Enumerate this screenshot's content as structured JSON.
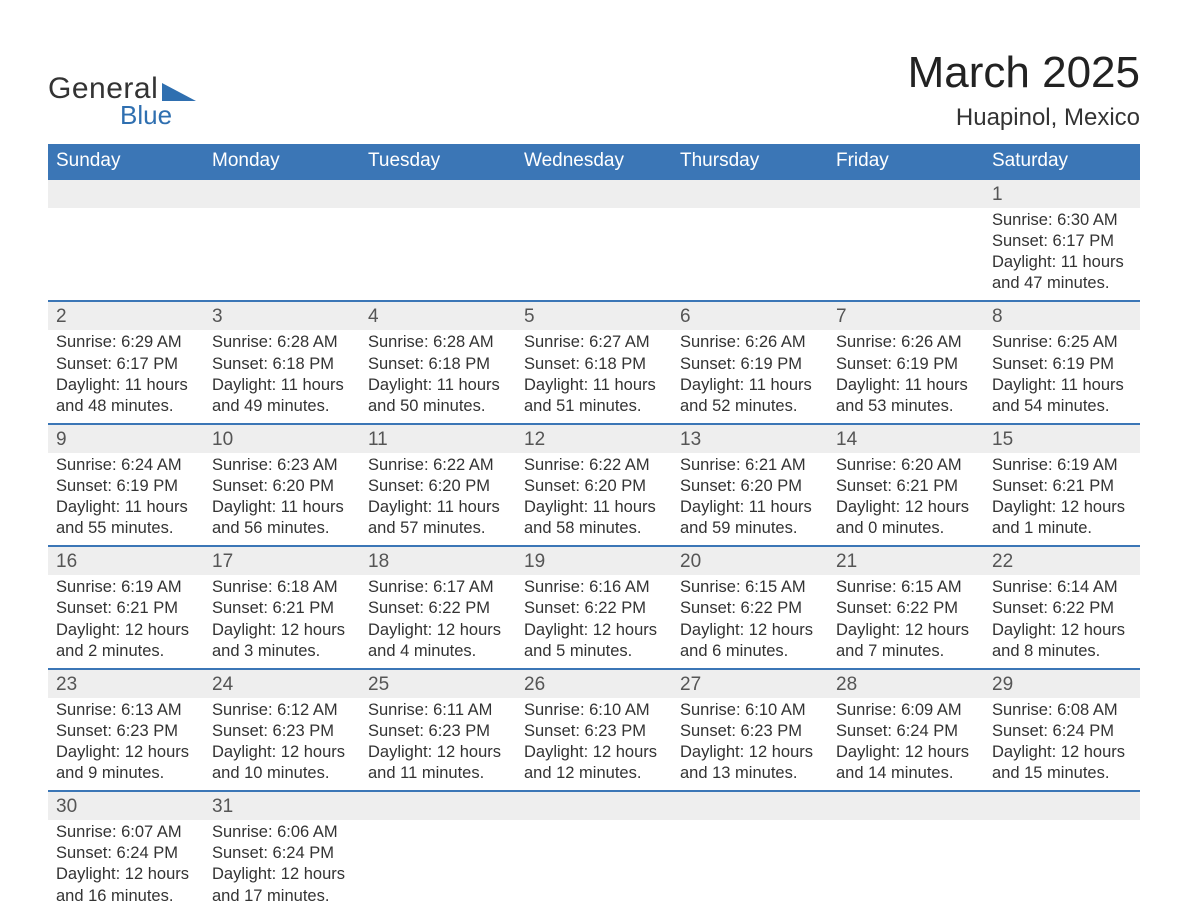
{
  "brand": {
    "word1": "General",
    "word2": "Blue",
    "triangle_color": "#2f6fb0",
    "text_color": "#333333",
    "blue_text_color": "#2f6fb0"
  },
  "title": {
    "month_year": "March 2025",
    "location": "Huapinol, Mexico",
    "month_fontsize": 44,
    "location_fontsize": 24
  },
  "colors": {
    "header_bg": "#3b76b6",
    "header_text": "#ffffff",
    "row_divider": "#3b76b6",
    "daynum_bg": "#eeeeee",
    "body_text": "#333333",
    "page_bg": "#ffffff"
  },
  "calendar": {
    "type": "table",
    "columns": [
      "Sunday",
      "Monday",
      "Tuesday",
      "Wednesday",
      "Thursday",
      "Friday",
      "Saturday"
    ],
    "weeks": [
      [
        null,
        null,
        null,
        null,
        null,
        null,
        {
          "n": "1",
          "sr": "Sunrise: 6:30 AM",
          "ss": "Sunset: 6:17 PM",
          "d1": "Daylight: 11 hours",
          "d2": "and 47 minutes."
        }
      ],
      [
        {
          "n": "2",
          "sr": "Sunrise: 6:29 AM",
          "ss": "Sunset: 6:17 PM",
          "d1": "Daylight: 11 hours",
          "d2": "and 48 minutes."
        },
        {
          "n": "3",
          "sr": "Sunrise: 6:28 AM",
          "ss": "Sunset: 6:18 PM",
          "d1": "Daylight: 11 hours",
          "d2": "and 49 minutes."
        },
        {
          "n": "4",
          "sr": "Sunrise: 6:28 AM",
          "ss": "Sunset: 6:18 PM",
          "d1": "Daylight: 11 hours",
          "d2": "and 50 minutes."
        },
        {
          "n": "5",
          "sr": "Sunrise: 6:27 AM",
          "ss": "Sunset: 6:18 PM",
          "d1": "Daylight: 11 hours",
          "d2": "and 51 minutes."
        },
        {
          "n": "6",
          "sr": "Sunrise: 6:26 AM",
          "ss": "Sunset: 6:19 PM",
          "d1": "Daylight: 11 hours",
          "d2": "and 52 minutes."
        },
        {
          "n": "7",
          "sr": "Sunrise: 6:26 AM",
          "ss": "Sunset: 6:19 PM",
          "d1": "Daylight: 11 hours",
          "d2": "and 53 minutes."
        },
        {
          "n": "8",
          "sr": "Sunrise: 6:25 AM",
          "ss": "Sunset: 6:19 PM",
          "d1": "Daylight: 11 hours",
          "d2": "and 54 minutes."
        }
      ],
      [
        {
          "n": "9",
          "sr": "Sunrise: 6:24 AM",
          "ss": "Sunset: 6:19 PM",
          "d1": "Daylight: 11 hours",
          "d2": "and 55 minutes."
        },
        {
          "n": "10",
          "sr": "Sunrise: 6:23 AM",
          "ss": "Sunset: 6:20 PM",
          "d1": "Daylight: 11 hours",
          "d2": "and 56 minutes."
        },
        {
          "n": "11",
          "sr": "Sunrise: 6:22 AM",
          "ss": "Sunset: 6:20 PM",
          "d1": "Daylight: 11 hours",
          "d2": "and 57 minutes."
        },
        {
          "n": "12",
          "sr": "Sunrise: 6:22 AM",
          "ss": "Sunset: 6:20 PM",
          "d1": "Daylight: 11 hours",
          "d2": "and 58 minutes."
        },
        {
          "n": "13",
          "sr": "Sunrise: 6:21 AM",
          "ss": "Sunset: 6:20 PM",
          "d1": "Daylight: 11 hours",
          "d2": "and 59 minutes."
        },
        {
          "n": "14",
          "sr": "Sunrise: 6:20 AM",
          "ss": "Sunset: 6:21 PM",
          "d1": "Daylight: 12 hours",
          "d2": "and 0 minutes."
        },
        {
          "n": "15",
          "sr": "Sunrise: 6:19 AM",
          "ss": "Sunset: 6:21 PM",
          "d1": "Daylight: 12 hours",
          "d2": "and 1 minute."
        }
      ],
      [
        {
          "n": "16",
          "sr": "Sunrise: 6:19 AM",
          "ss": "Sunset: 6:21 PM",
          "d1": "Daylight: 12 hours",
          "d2": "and 2 minutes."
        },
        {
          "n": "17",
          "sr": "Sunrise: 6:18 AM",
          "ss": "Sunset: 6:21 PM",
          "d1": "Daylight: 12 hours",
          "d2": "and 3 minutes."
        },
        {
          "n": "18",
          "sr": "Sunrise: 6:17 AM",
          "ss": "Sunset: 6:22 PM",
          "d1": "Daylight: 12 hours",
          "d2": "and 4 minutes."
        },
        {
          "n": "19",
          "sr": "Sunrise: 6:16 AM",
          "ss": "Sunset: 6:22 PM",
          "d1": "Daylight: 12 hours",
          "d2": "and 5 minutes."
        },
        {
          "n": "20",
          "sr": "Sunrise: 6:15 AM",
          "ss": "Sunset: 6:22 PM",
          "d1": "Daylight: 12 hours",
          "d2": "and 6 minutes."
        },
        {
          "n": "21",
          "sr": "Sunrise: 6:15 AM",
          "ss": "Sunset: 6:22 PM",
          "d1": "Daylight: 12 hours",
          "d2": "and 7 minutes."
        },
        {
          "n": "22",
          "sr": "Sunrise: 6:14 AM",
          "ss": "Sunset: 6:22 PM",
          "d1": "Daylight: 12 hours",
          "d2": "and 8 minutes."
        }
      ],
      [
        {
          "n": "23",
          "sr": "Sunrise: 6:13 AM",
          "ss": "Sunset: 6:23 PM",
          "d1": "Daylight: 12 hours",
          "d2": "and 9 minutes."
        },
        {
          "n": "24",
          "sr": "Sunrise: 6:12 AM",
          "ss": "Sunset: 6:23 PM",
          "d1": "Daylight: 12 hours",
          "d2": "and 10 minutes."
        },
        {
          "n": "25",
          "sr": "Sunrise: 6:11 AM",
          "ss": "Sunset: 6:23 PM",
          "d1": "Daylight: 12 hours",
          "d2": "and 11 minutes."
        },
        {
          "n": "26",
          "sr": "Sunrise: 6:10 AM",
          "ss": "Sunset: 6:23 PM",
          "d1": "Daylight: 12 hours",
          "d2": "and 12 minutes."
        },
        {
          "n": "27",
          "sr": "Sunrise: 6:10 AM",
          "ss": "Sunset: 6:23 PM",
          "d1": "Daylight: 12 hours",
          "d2": "and 13 minutes."
        },
        {
          "n": "28",
          "sr": "Sunrise: 6:09 AM",
          "ss": "Sunset: 6:24 PM",
          "d1": "Daylight: 12 hours",
          "d2": "and 14 minutes."
        },
        {
          "n": "29",
          "sr": "Sunrise: 6:08 AM",
          "ss": "Sunset: 6:24 PM",
          "d1": "Daylight: 12 hours",
          "d2": "and 15 minutes."
        }
      ],
      [
        {
          "n": "30",
          "sr": "Sunrise: 6:07 AM",
          "ss": "Sunset: 6:24 PM",
          "d1": "Daylight: 12 hours",
          "d2": "and 16 minutes."
        },
        {
          "n": "31",
          "sr": "Sunrise: 6:06 AM",
          "ss": "Sunset: 6:24 PM",
          "d1": "Daylight: 12 hours",
          "d2": "and 17 minutes."
        },
        null,
        null,
        null,
        null,
        null
      ]
    ]
  }
}
